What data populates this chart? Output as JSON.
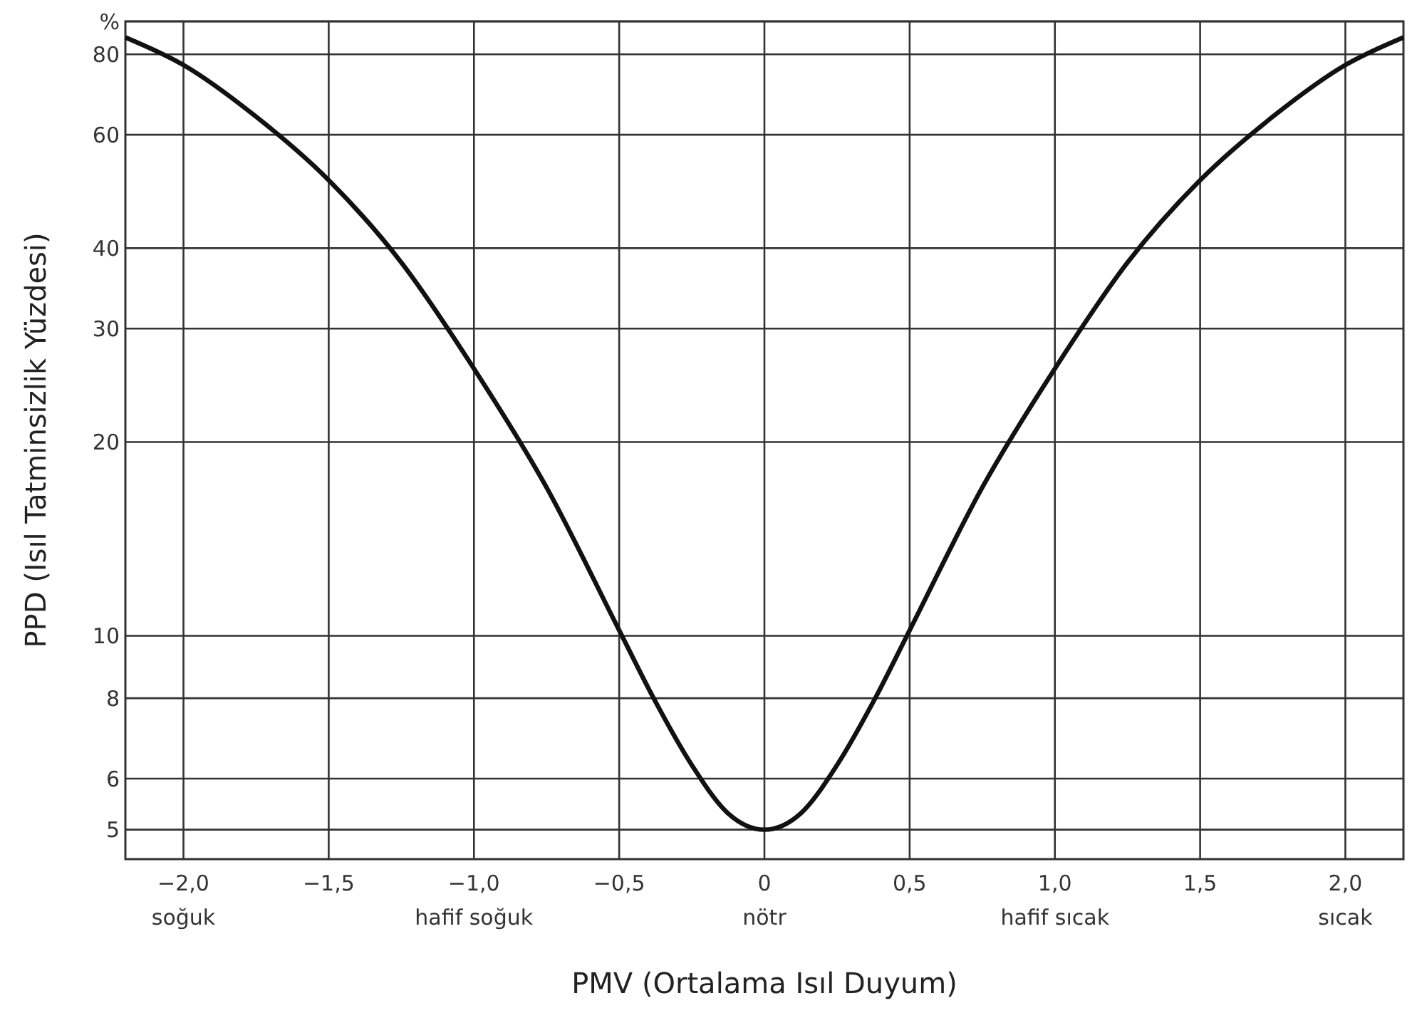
{
  "chart_data": {
    "type": "line",
    "xlabel": "PMV (Ortalama Isıl Duyum)",
    "ylabel": "PPD (Isıl Tatminsizlik Yüzdesi)",
    "x": [
      -2.2,
      -2.0,
      -1.75,
      -1.5,
      -1.25,
      -1.0,
      -0.75,
      -0.5,
      -0.375,
      -0.25,
      -0.125,
      0,
      0.125,
      0.25,
      0.375,
      0.5,
      0.75,
      1.0,
      1.25,
      1.5,
      1.75,
      2.0,
      2.2
    ],
    "series": [
      {
        "color": "#111111",
        "values": [
          85,
          77,
          64,
          51,
          38,
          26,
          17,
          10.2,
          7.9,
          6.3,
          5.3,
          5,
          5.3,
          6.3,
          7.9,
          10.2,
          17,
          26,
          38,
          51,
          64,
          77,
          85
        ]
      }
    ],
    "xlim": [
      -2.2,
      2.2
    ],
    "xticks": [
      {
        "value": -2,
        "label": "−2,0\nsoğuk"
      },
      {
        "value": -1.5,
        "label": "−1,5"
      },
      {
        "value": -1,
        "label": "−1,0\nhafif soğuk"
      },
      {
        "value": -0.5,
        "label": "−0,5"
      },
      {
        "value": 0,
        "label": "0\nnötr"
      },
      {
        "value": 0.5,
        "label": "0,5"
      },
      {
        "value": 1,
        "label": "1,0\nhafif sıcak"
      },
      {
        "value": 1.5,
        "label": "1,5"
      },
      {
        "value": 2,
        "label": "2,0\nsıcak"
      }
    ],
    "ylim": [
      4.5,
      90
    ],
    "yticks": [
      5,
      6,
      8,
      10,
      20,
      30,
      40,
      60,
      80,
      {
        "value": 90,
        "label": "%"
      }
    ],
    "log": "y",
    "grid": true,
    "marker": "none",
    "line_style": "solid"
  }
}
